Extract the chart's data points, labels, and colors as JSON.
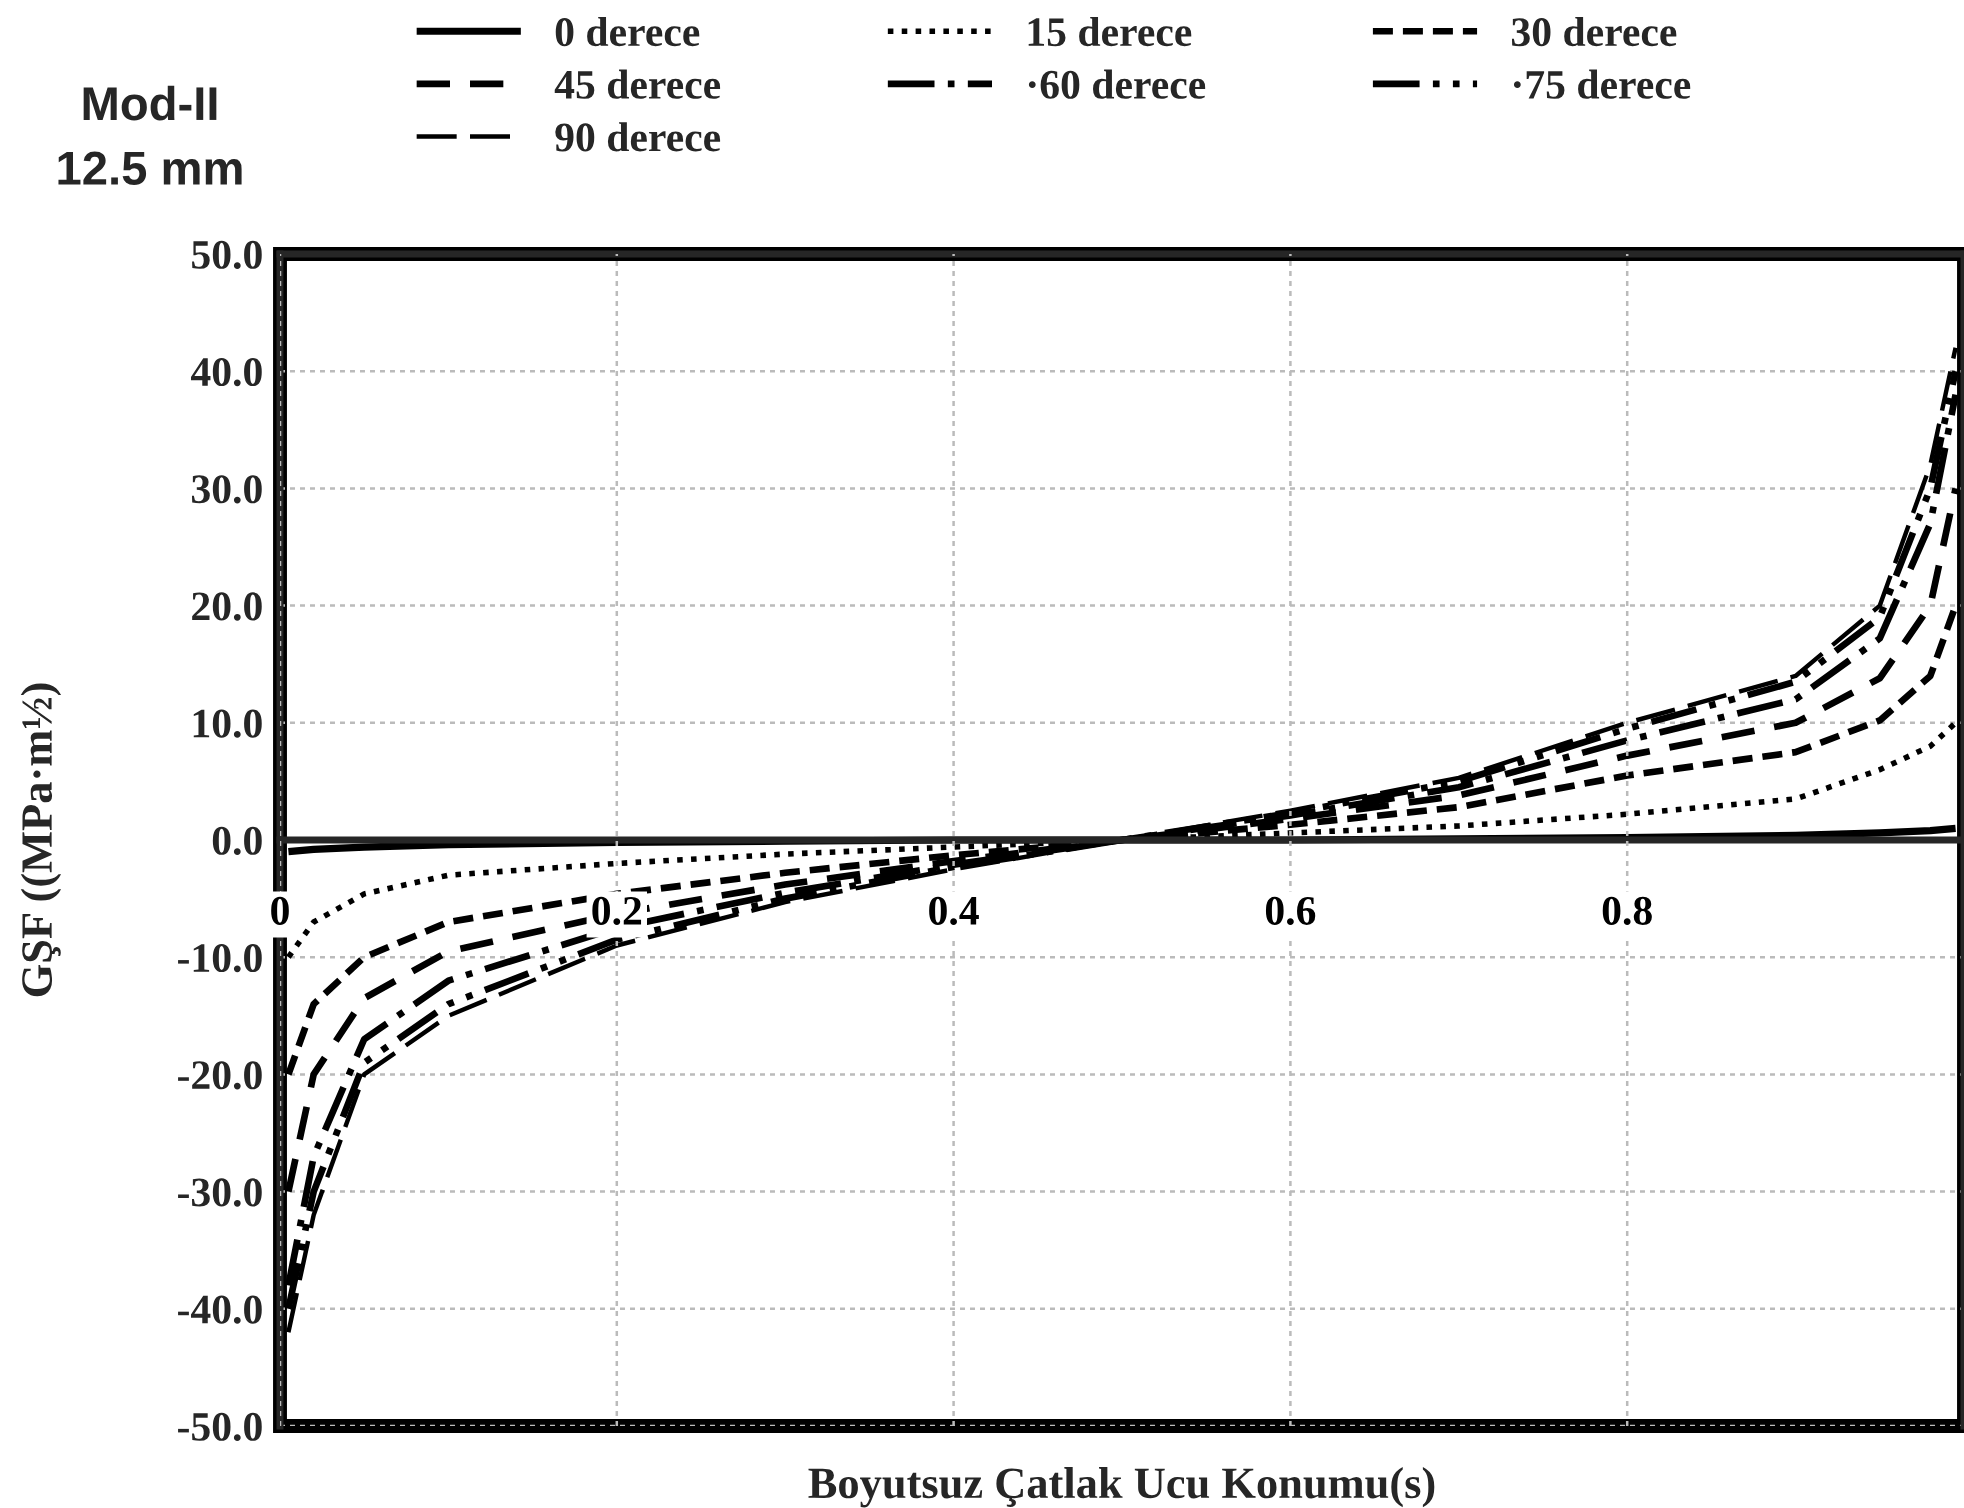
{
  "chart_data": {
    "type": "line",
    "title": "Mod-II\n12.5 mm",
    "xlabel": "Boyutsuz Çatlak Ucu Konumu(s)",
    "ylabel": "GŞF ((MPa·m½)",
    "x": [
      0.005,
      0.02,
      0.05,
      0.1,
      0.2,
      0.3,
      0.4,
      0.5,
      0.6,
      0.7,
      0.8,
      0.9,
      0.95,
      0.98,
      0.995
    ],
    "series": [
      {
        "name": "0 derece",
        "color": "#000000",
        "line_style": "solid",
        "values": [
          -1.0,
          -0.8,
          -0.6,
          -0.4,
          -0.2,
          -0.1,
          0,
          0,
          0,
          0.1,
          0.2,
          0.4,
          0.6,
          0.8,
          1.0
        ]
      },
      {
        "name": "15 derece",
        "color": "#000000",
        "line_style": "dotted",
        "values": [
          -10,
          -7,
          -4.6,
          -3,
          -2,
          -1.2,
          -0.6,
          0,
          0.6,
          1.2,
          2.2,
          3.5,
          6,
          8,
          10
        ]
      },
      {
        "name": "30 derece",
        "color": "#000000",
        "line_style": "dashed",
        "values": [
          -20,
          -14,
          -10,
          -7,
          -4.6,
          -2.8,
          -1.3,
          0,
          1.3,
          2.8,
          5.5,
          7.5,
          10.2,
          14,
          20
        ]
      },
      {
        "name": "45 derece",
        "color": "#000000",
        "line_style": "dashed",
        "values": [
          -30,
          -20,
          -13.5,
          -9.5,
          -6.3,
          -3.8,
          -1.8,
          0,
          1.8,
          3.8,
          7.2,
          10,
          13.8,
          20,
          30
        ]
      },
      {
        "name": "·60 derece",
        "color": "#000000",
        "line_style": "dashed",
        "values": [
          -38,
          -27,
          -17,
          -12,
          -7.5,
          -4.5,
          -2.1,
          0,
          2.1,
          4.5,
          8.5,
          12,
          17.2,
          27,
          38
        ]
      },
      {
        "name": "·75 derece",
        "color": "#000000",
        "line_style": "dashed",
        "values": [
          -40,
          -30,
          -19,
          -14,
          -8.5,
          -5,
          -2.3,
          0,
          2.3,
          5,
          9.5,
          13.5,
          19,
          30,
          40
        ]
      },
      {
        "name": "90 derece",
        "color": "#000000",
        "line_style": "dashed",
        "values": [
          -42,
          -32,
          -20,
          -15,
          -9,
          -5.3,
          -2.5,
          0,
          2.5,
          5.3,
          10,
          14,
          20,
          32,
          42
        ]
      }
    ],
    "xlim": [
      0,
      1
    ],
    "xticks": [
      0,
      0.2,
      0.4,
      0.6,
      0.8
    ],
    "ylim": [
      -50,
      50
    ],
    "yticks": [
      {
        "value": -50,
        "label": "-50.0"
      },
      {
        "value": -40,
        "label": "-40.0"
      },
      {
        "value": -30,
        "label": "-30.0"
      },
      {
        "value": -20,
        "label": "-20.0"
      },
      {
        "value": -10,
        "label": "-10.0"
      },
      {
        "value": 0,
        "label": "0.0"
      },
      {
        "value": 10,
        "label": "10.0"
      },
      {
        "value": 20,
        "label": "20.0"
      },
      {
        "value": 30,
        "label": "30.0"
      },
      {
        "value": 40,
        "label": "40.0"
      },
      {
        "value": 50,
        "label": "50.0"
      }
    ],
    "grid": true,
    "legend": "top"
  }
}
